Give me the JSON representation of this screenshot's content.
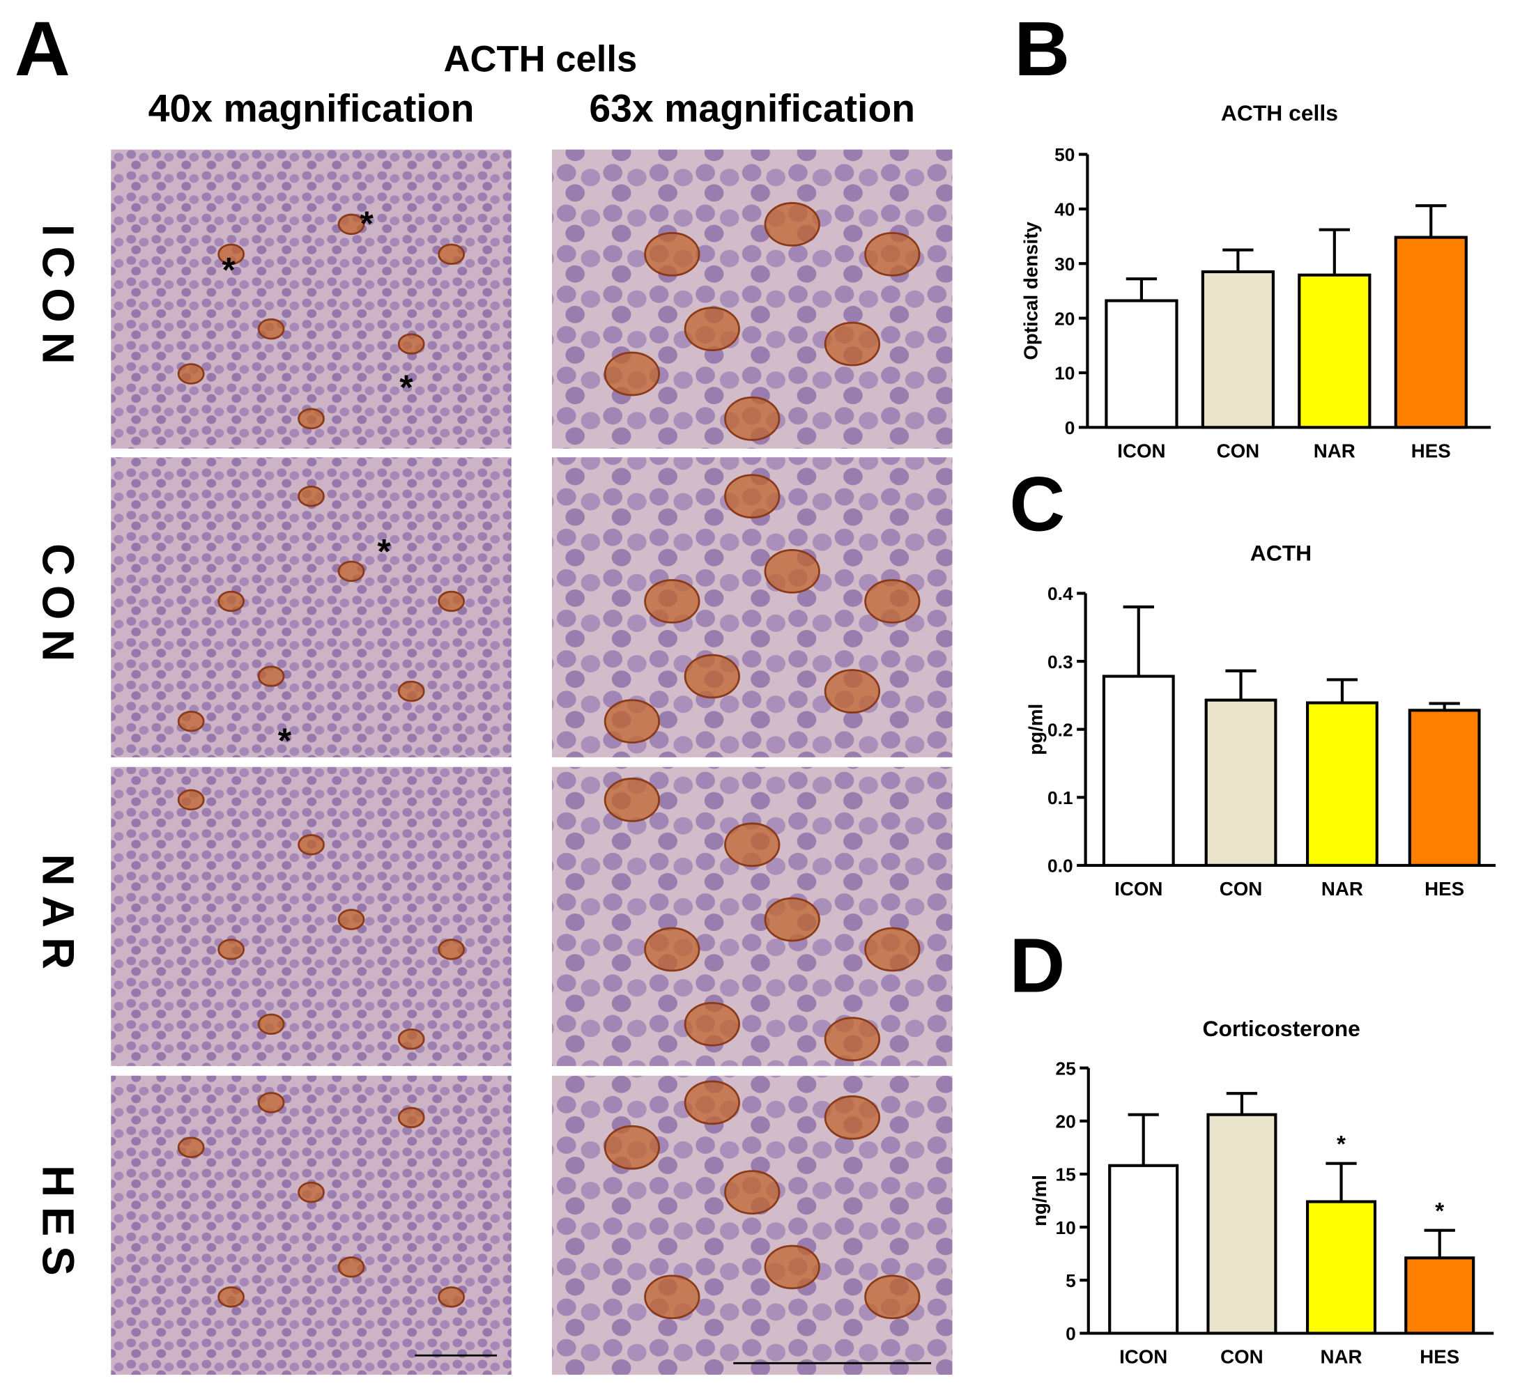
{
  "micrograph_panel": {
    "panel_label": "A",
    "title": "ACTH cells",
    "columns": [
      "40x magnification",
      "63x magnification"
    ],
    "rows": [
      "ICON",
      "CON",
      "NAR",
      "HES"
    ],
    "marker": "*"
  },
  "chart_data": [
    {
      "type": "bar",
      "panel_label": "B",
      "title": "ACTH cells",
      "y_label": "Optical density",
      "categories": [
        "ICON",
        "CON",
        "NAR",
        "HES"
      ],
      "values": [
        23.2,
        28.5,
        27.9,
        34.8
      ],
      "errors": [
        4.0,
        4.0,
        8.3,
        5.8
      ],
      "colors": [
        "#ffffff",
        "#ebe4cc",
        "#ffff00",
        "#ff7f00"
      ],
      "ylim": [
        0,
        50
      ],
      "yticks": [
        0,
        10,
        20,
        30,
        40,
        50
      ]
    },
    {
      "type": "bar",
      "panel_label": "C",
      "title": "ACTH",
      "y_label": "pg/ml",
      "categories": [
        "ICON",
        "CON",
        "NAR",
        "HES"
      ],
      "values": [
        0.278,
        0.243,
        0.239,
        0.228
      ],
      "errors": [
        0.102,
        0.043,
        0.034,
        0.01
      ],
      "colors": [
        "#ffffff",
        "#ebe4cc",
        "#ffff00",
        "#ff7f00"
      ],
      "ylim": [
        0,
        0.4
      ],
      "yticks": [
        {
          "value": 0,
          "label": "0.0"
        },
        0.1,
        0.2,
        0.3,
        0.4
      ]
    },
    {
      "type": "bar",
      "panel_label": "D",
      "title": "Corticosterone",
      "y_label": "ng/ml",
      "categories": [
        "ICON",
        "CON",
        "NAR",
        "HES"
      ],
      "values": [
        15.8,
        20.6,
        12.4,
        7.1
      ],
      "errors": [
        4.8,
        2.0,
        3.6,
        2.6
      ],
      "value_annotations": [
        null,
        null,
        "*",
        "*"
      ],
      "colors": [
        "#ffffff",
        "#ebe4cc",
        "#ffff00",
        "#ff7f00"
      ],
      "ylim": [
        0,
        25
      ],
      "yticks": [
        0,
        5,
        10,
        15,
        20,
        25
      ]
    }
  ]
}
